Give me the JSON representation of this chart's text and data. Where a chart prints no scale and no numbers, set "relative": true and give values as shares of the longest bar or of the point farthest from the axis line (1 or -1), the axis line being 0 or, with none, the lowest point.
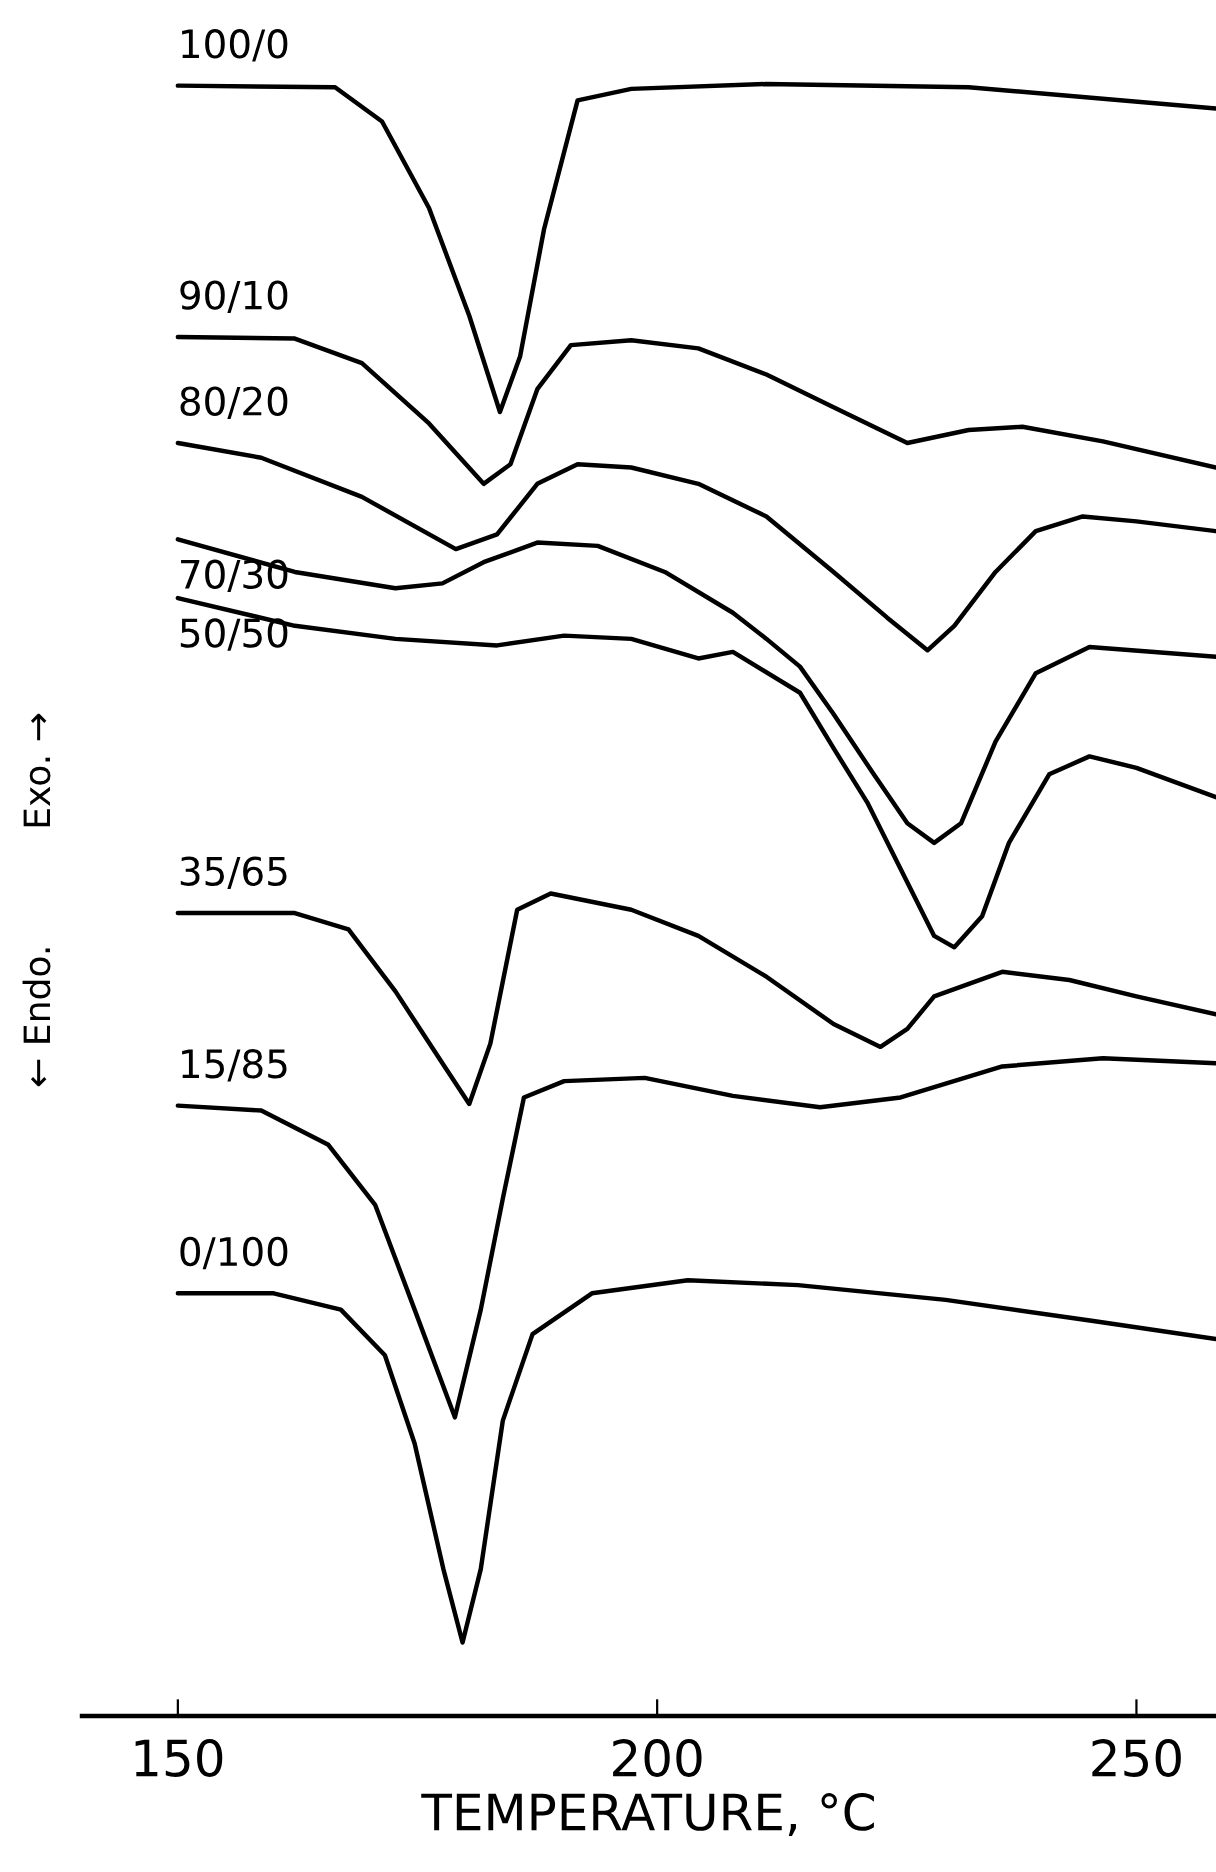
{
  "chart_data": {
    "type": "line",
    "relative": true,
    "xlabel": "TEMPERATURE, °C",
    "ylabel": "← Endo.          Exo. →",
    "xlim": [
      140,
      258.3
    ],
    "xticks": [
      150,
      200,
      250
    ],
    "grid": false,
    "legend": false,
    "marker": "none",
    "line_style": "solid",
    "tick_labels": "x",
    "series": [
      {
        "name": "100/0",
        "color": "#000000",
        "x": [
          150,
          166.4,
          171.3,
          176.2,
          180.4,
          183.6,
          185.7,
          188.2,
          191.7,
          197.3,
          211.4,
          232.5,
          258.3
        ],
        "values": [
          0.999,
          0.998,
          0.977,
          0.924,
          0.858,
          0.799,
          0.833,
          0.911,
          0.99,
          0.997,
          1.0,
          0.998,
          0.985
        ]
      },
      {
        "name": "90/10",
        "color": "#000000",
        "x": [
          150,
          162.2,
          169.2,
          176.2,
          181.9,
          184.7,
          187.5,
          191.0,
          197.3,
          204.3,
          211.4,
          218.4,
          226.1,
          232.5,
          238.1,
          246.5,
          258.3
        ],
        "values": [
          0.845,
          0.844,
          0.829,
          0.792,
          0.755,
          0.767,
          0.813,
          0.84,
          0.843,
          0.838,
          0.822,
          0.802,
          0.78,
          0.788,
          0.79,
          0.781,
          0.765
        ]
      },
      {
        "name": "80/20",
        "color": "#000000",
        "x": [
          150,
          158.7,
          169.2,
          179.0,
          183.3,
          187.5,
          191.7,
          197.3,
          204.3,
          211.4,
          218.4,
          224.0,
          228.2,
          231.0,
          235.3,
          239.5,
          244.4,
          250.0,
          258.3
        ],
        "values": [
          0.78,
          0.771,
          0.747,
          0.715,
          0.724,
          0.755,
          0.767,
          0.765,
          0.755,
          0.735,
          0.701,
          0.673,
          0.653,
          0.668,
          0.701,
          0.726,
          0.735,
          0.732,
          0.726
        ]
      },
      {
        "name": "70/30",
        "color": "#000000",
        "x": [
          150,
          162.2,
          172.7,
          177.6,
          181.9,
          187.5,
          193.8,
          200.8,
          207.9,
          211.4,
          214.9,
          218.4,
          222.6,
          226.1,
          228.9,
          231.7,
          235.3,
          239.5,
          245.1,
          258.3
        ],
        "values": [
          0.721,
          0.701,
          0.691,
          0.694,
          0.707,
          0.719,
          0.717,
          0.701,
          0.676,
          0.66,
          0.643,
          0.614,
          0.577,
          0.547,
          0.535,
          0.547,
          0.597,
          0.639,
          0.655,
          0.649
        ]
      },
      {
        "name": "50/50",
        "color": "#000000",
        "x": [
          150,
          162.2,
          172.7,
          183.3,
          190.3,
          197.3,
          204.3,
          207.9,
          214.9,
          218.4,
          221.9,
          225.4,
          228.9,
          231.0,
          233.9,
          236.7,
          240.9,
          245.1,
          250.0,
          258.3
        ],
        "values": [
          0.685,
          0.668,
          0.66,
          0.656,
          0.662,
          0.66,
          0.648,
          0.652,
          0.627,
          0.593,
          0.56,
          0.519,
          0.478,
          0.471,
          0.49,
          0.535,
          0.577,
          0.588,
          0.581,
          0.563
        ]
      },
      {
        "name": "35/65",
        "color": "#000000",
        "x": [
          150,
          162.2,
          167.8,
          172.7,
          177.6,
          180.4,
          182.6,
          185.4,
          188.9,
          197.3,
          204.3,
          211.4,
          218.4,
          223.3,
          226.1,
          228.9,
          236.0,
          243.0,
          250.0,
          258.3
        ],
        "values": [
          0.492,
          0.492,
          0.482,
          0.444,
          0.4,
          0.375,
          0.412,
          0.494,
          0.504,
          0.494,
          0.478,
          0.453,
          0.424,
          0.41,
          0.421,
          0.441,
          0.456,
          0.451,
          0.441,
          0.43
        ]
      },
      {
        "name": "15/85",
        "color": "#000000",
        "x": [
          150,
          158.7,
          165.7,
          170.6,
          174.7,
          178.9,
          181.6,
          183.9,
          186.1,
          190.3,
          198.7,
          207.9,
          217.0,
          225.4,
          236.0,
          246.5,
          258.3
        ],
        "values": [
          0.374,
          0.371,
          0.35,
          0.313,
          0.249,
          0.183,
          0.249,
          0.317,
          0.379,
          0.389,
          0.391,
          0.38,
          0.373,
          0.379,
          0.398,
          0.403,
          0.4
        ]
      },
      {
        "name": "0/100",
        "color": "#000000",
        "x": [
          150,
          160.0,
          167.0,
          171.6,
          174.7,
          177.7,
          179.7,
          181.6,
          183.9,
          187.0,
          193.2,
          203.2,
          214.7,
          230.1,
          245.5,
          258.3
        ],
        "values": [
          0.259,
          0.259,
          0.249,
          0.221,
          0.167,
          0.09,
          0.045,
          0.09,
          0.181,
          0.234,
          0.259,
          0.267,
          0.264,
          0.255,
          0.242,
          0.231
        ]
      }
    ]
  }
}
